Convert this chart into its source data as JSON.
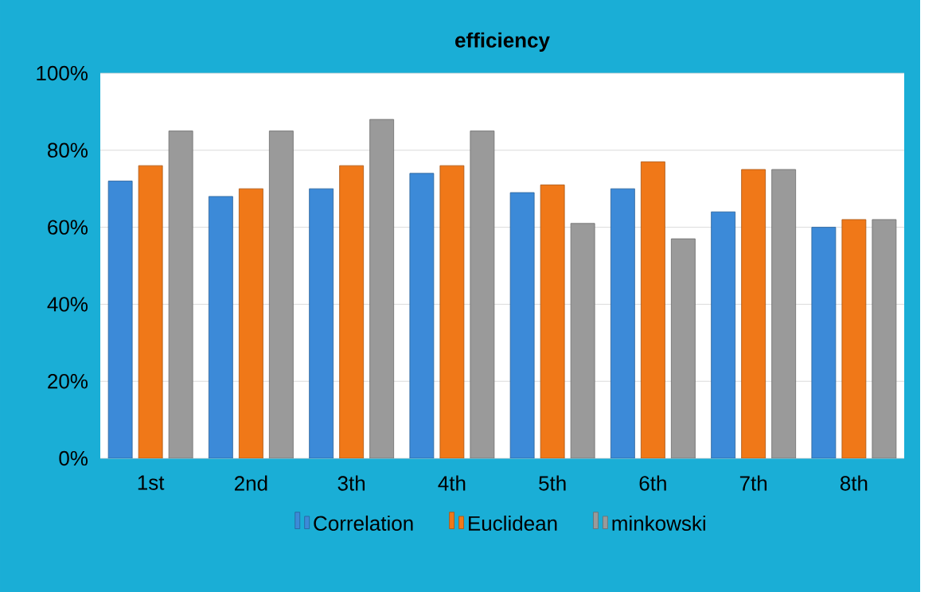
{
  "chart_data": {
    "type": "bar",
    "title": "efficiency",
    "categories": [
      "1st",
      "2nd",
      "3th",
      "4th",
      "5th",
      "6th",
      "7th",
      "8th"
    ],
    "series": [
      {
        "name": "Correlation",
        "color": "#3c8ad8",
        "values": [
          72,
          68,
          70,
          74,
          69,
          70,
          64,
          60
        ]
      },
      {
        "name": "Euclidean",
        "color": "#f07818",
        "values": [
          76,
          70,
          76,
          76,
          71,
          77,
          75,
          62
        ]
      },
      {
        "name": "minkowski",
        "color": "#9a9a9a",
        "values": [
          85,
          85,
          88,
          85,
          61,
          57,
          75,
          62
        ]
      }
    ],
    "ylim": [
      0,
      100
    ],
    "yticks": [
      {
        "value": 0,
        "label": "0%"
      },
      {
        "value": 20,
        "label": "20%"
      },
      {
        "value": 40,
        "label": "40%"
      },
      {
        "value": 60,
        "label": "60%"
      },
      {
        "value": 80,
        "label": "80%"
      },
      {
        "value": 100,
        "label": "100%"
      }
    ],
    "grid": "y",
    "legend": "bottom"
  }
}
